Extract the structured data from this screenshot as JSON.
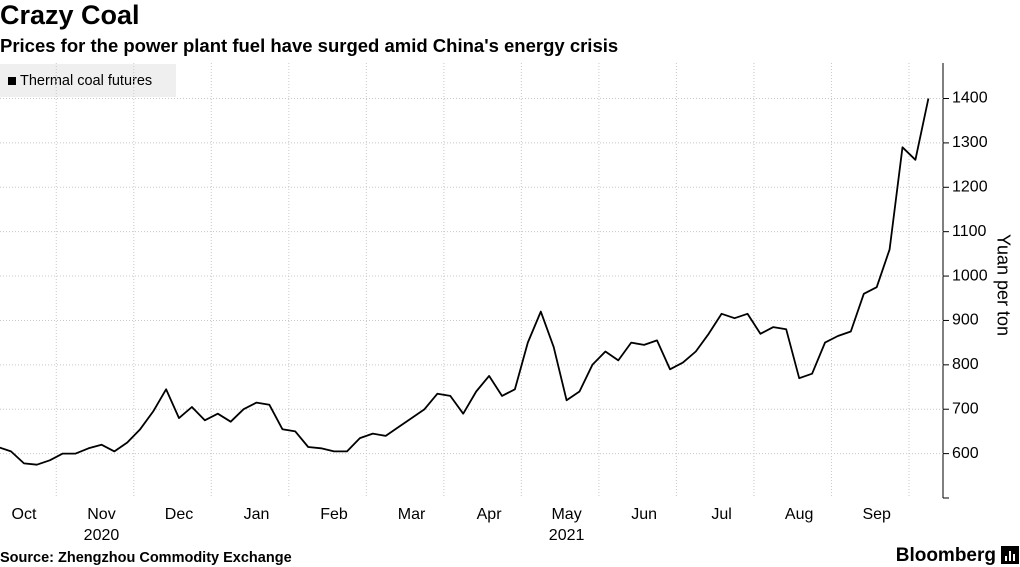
{
  "chart_data": {
    "type": "line",
    "title": "Crazy Coal",
    "subtitle": "Prices for the power plant fuel have surged amid China's energy crisis",
    "y_axis_label": "Yuan per ton",
    "source": "Source: Zhengzhou Commodity Exchange",
    "brand": "Bloomberg",
    "year_labels": [
      "2020",
      "2021"
    ],
    "categories": [
      null,
      null,
      null,
      "Oct",
      null,
      null,
      null,
      null,
      null,
      "Nov",
      null,
      null,
      null,
      null,
      null,
      "Dec",
      null,
      null,
      null,
      null,
      null,
      "Jan",
      null,
      null,
      null,
      null,
      null,
      "Feb",
      null,
      null,
      null,
      null,
      null,
      "Mar",
      null,
      null,
      null,
      null,
      null,
      "Apr",
      null,
      null,
      null,
      null,
      null,
      "May",
      null,
      null,
      null,
      null,
      null,
      "Jun",
      null,
      null,
      null,
      null,
      null,
      "Jul",
      null,
      null,
      null,
      null,
      null,
      "Aug",
      null,
      null,
      null,
      null,
      null,
      "Sep",
      null,
      null,
      null,
      null
    ],
    "series": [
      {
        "name": "Thermal coal futures",
        "color": "#000000",
        "values": [
          null,
          615,
          605,
          578,
          575,
          585,
          600,
          600,
          612,
          620,
          605,
          625,
          655,
          695,
          745,
          680,
          705,
          675,
          690,
          672,
          700,
          715,
          710,
          655,
          650,
          615,
          612,
          605,
          605,
          635,
          645,
          640,
          660,
          680,
          700,
          735,
          730,
          690,
          740,
          775,
          730,
          745,
          850,
          920,
          840,
          720,
          740,
          800,
          830,
          810,
          850,
          845,
          855,
          790,
          805,
          830,
          870,
          915,
          905,
          915,
          870,
          885,
          880,
          770,
          780,
          850,
          865,
          875,
          960,
          975,
          1060,
          1290,
          1262,
          1400
        ]
      }
    ],
    "ylim": [
      500,
      1480
    ],
    "yticks": [
      600,
      700,
      800,
      900,
      1000,
      1100,
      1200,
      1300,
      1400
    ],
    "grid": true,
    "legend": "top-left"
  }
}
